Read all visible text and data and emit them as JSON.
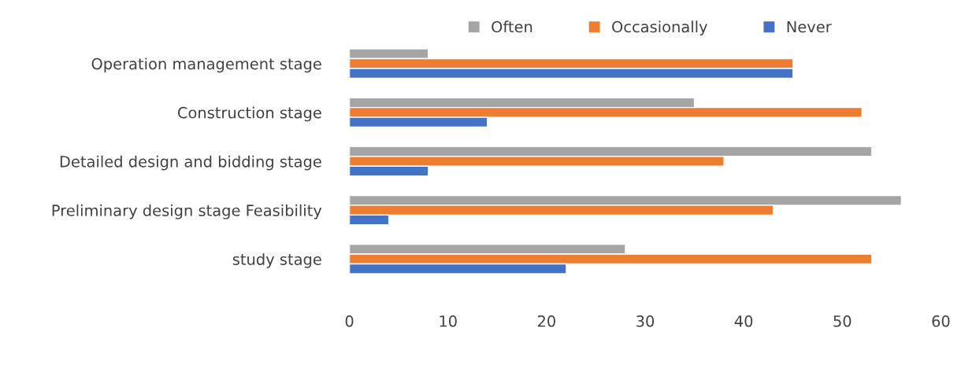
{
  "chart_data": {
    "type": "bar",
    "orientation": "horizontal",
    "categories": [
      "Operation management stage",
      "Construction stage",
      "Detailed design and bidding stage",
      "Preliminary design stage Feasibility",
      "study stage"
    ],
    "series": [
      {
        "name": "Often",
        "color": "#a5a5a5",
        "values": [
          8,
          35,
          53,
          56,
          28
        ]
      },
      {
        "name": "Occasionally",
        "color": "#ed7d31",
        "values": [
          45,
          52,
          38,
          43,
          53
        ]
      },
      {
        "name": "Never",
        "color": "#4472c4",
        "values": [
          45,
          14,
          8,
          4,
          22
        ]
      }
    ],
    "xlim": [
      0,
      60
    ],
    "xticks": [
      0,
      10,
      20,
      30,
      40,
      50,
      60
    ],
    "grid": false,
    "legend": "top"
  }
}
